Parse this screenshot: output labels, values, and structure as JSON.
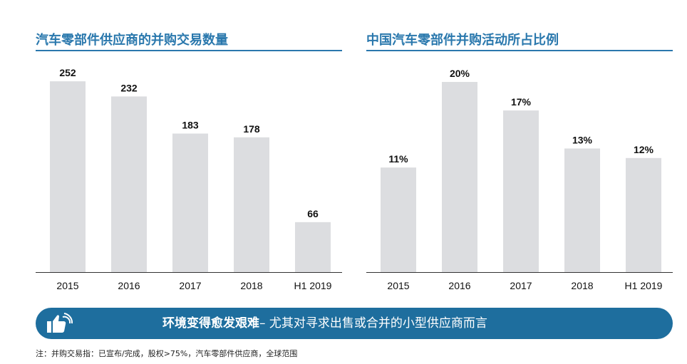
{
  "chart_data": [
    {
      "type": "bar",
      "title": "汽车零部件供应商的并购交易数量",
      "categories": [
        "2015",
        "2016",
        "2017",
        "2018",
        "H1 2019"
      ],
      "values": [
        252,
        232,
        183,
        178,
        66
      ],
      "data_labels": [
        "252",
        "232",
        "183",
        "178",
        "66"
      ],
      "ylim": [
        0,
        270
      ],
      "grid": false,
      "bar_color": "#dcdde0"
    },
    {
      "type": "bar",
      "title": "中国汽车零部件并购活动所占比例",
      "categories": [
        "2015",
        "2016",
        "2017",
        "2018",
        "H1 2019"
      ],
      "values": [
        11,
        20,
        17,
        13,
        12
      ],
      "data_labels": [
        "11%",
        "20%",
        "17%",
        "13%",
        "12%"
      ],
      "ylim": [
        0,
        21.5
      ],
      "grid": false,
      "bar_color": "#dcdde0"
    }
  ],
  "banner": {
    "bold_text": "环境变得愈发艰难",
    "rest_text": "– 尤其对寻求出售或合并的小型供应商而言",
    "icon": "thumbs-up-icon",
    "color": "#1e6e9e"
  },
  "note": "注：并购交易指：已宣布/完成，股权>75%，汽车零部件供应商，全球范围",
  "colors": {
    "accent": "#2a78ad",
    "bar": "#dcdde0"
  }
}
